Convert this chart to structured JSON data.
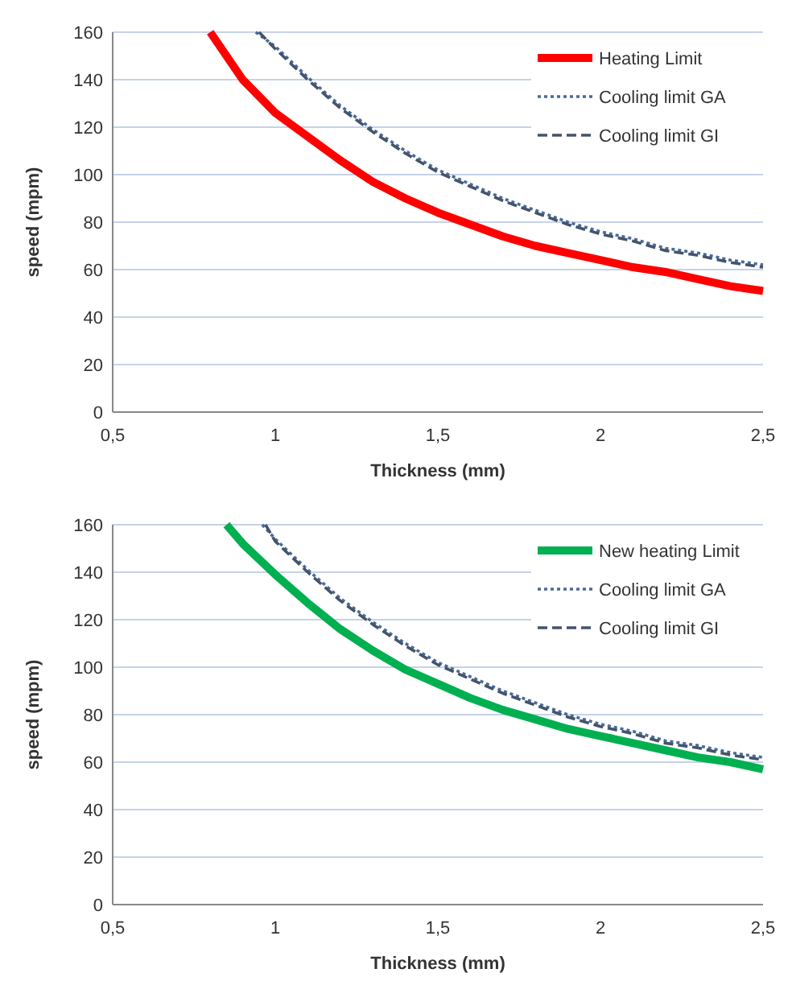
{
  "chart_data": [
    {
      "type": "line",
      "xlabel": "Thickness (mm)",
      "ylabel": "speed (mpm)",
      "xlim": [
        0.5,
        2.5
      ],
      "ylim": [
        0,
        160
      ],
      "xticks": [
        {
          "value": 0.5,
          "label": "0,5"
        },
        {
          "value": 1,
          "label": "1"
        },
        {
          "value": 1.5,
          "label": "1,5"
        },
        {
          "value": 2,
          "label": "2"
        },
        {
          "value": 2.5,
          "label": "2,5"
        }
      ],
      "yticks": [
        0,
        20,
        40,
        60,
        80,
        100,
        120,
        140,
        160
      ],
      "grid": "y",
      "legend": "top right",
      "marker": "none",
      "series": [
        {
          "name": "Heating Limit",
          "color": "#ff0000",
          "line_style": "solid",
          "x": [
            0.8,
            0.9,
            1.0,
            1.1,
            1.2,
            1.3,
            1.4,
            1.5,
            1.6,
            1.7,
            1.8,
            1.9,
            2.0,
            2.1,
            2.2,
            2.3,
            2.4,
            2.5
          ],
          "values": [
            160,
            140,
            126,
            116,
            106,
            97,
            90,
            84,
            79,
            74,
            70,
            67,
            64,
            61,
            59,
            56,
            53,
            51
          ]
        },
        {
          "name": "Cooling limit GA",
          "color": "#4a6a9a",
          "line_style": "dotted",
          "x": [
            0.94,
            1.0,
            1.1,
            1.2,
            1.3,
            1.4,
            1.5,
            1.6,
            1.7,
            1.8,
            1.9,
            2.0,
            2.1,
            2.2,
            2.3,
            2.4,
            2.5
          ],
          "values": [
            160,
            154,
            141,
            129,
            119,
            110,
            102,
            96,
            90,
            85,
            80,
            76,
            73,
            69,
            67,
            64,
            62
          ]
        },
        {
          "name": "Cooling limit GI",
          "color": "#44546a",
          "line_style": "dashed",
          "x": [
            0.95,
            1.0,
            1.1,
            1.2,
            1.3,
            1.4,
            1.5,
            1.6,
            1.7,
            1.8,
            1.9,
            2.0,
            2.1,
            2.2,
            2.3,
            2.4,
            2.5
          ],
          "values": [
            160,
            153,
            140,
            128,
            118,
            109,
            101,
            95,
            89,
            84,
            79,
            75,
            72,
            68,
            66,
            63,
            61
          ]
        }
      ]
    },
    {
      "type": "line",
      "xlabel": "Thickness (mm)",
      "ylabel": "speed (mpm)",
      "xlim": [
        0.5,
        2.5
      ],
      "ylim": [
        0,
        160
      ],
      "xticks": [
        {
          "value": 0.5,
          "label": "0,5"
        },
        {
          "value": 1,
          "label": "1"
        },
        {
          "value": 1.5,
          "label": "1,5"
        },
        {
          "value": 2,
          "label": "2"
        },
        {
          "value": 2.5,
          "label": "2,5"
        }
      ],
      "yticks": [
        0,
        20,
        40,
        60,
        80,
        100,
        120,
        140,
        160
      ],
      "grid": "y",
      "legend": "top right",
      "marker": "none",
      "series": [
        {
          "name": "New heating Limit",
          "color": "#00b050",
          "line_style": "solid",
          "x": [
            0.85,
            0.9,
            1.0,
            1.1,
            1.2,
            1.3,
            1.4,
            1.5,
            1.6,
            1.7,
            1.8,
            1.9,
            2.0,
            2.1,
            2.2,
            2.3,
            2.4,
            2.5
          ],
          "values": [
            160,
            152,
            139,
            127,
            116,
            107,
            99,
            93,
            87,
            82,
            78,
            74,
            71,
            68,
            65,
            62,
            60,
            57
          ]
        },
        {
          "name": "Cooling limit GA",
          "color": "#4a6a9a",
          "line_style": "dotted",
          "x": [
            0.96,
            1.0,
            1.1,
            1.2,
            1.3,
            1.4,
            1.5,
            1.6,
            1.7,
            1.8,
            1.9,
            2.0,
            2.1,
            2.2,
            2.3,
            2.4,
            2.5
          ],
          "values": [
            160,
            154,
            141,
            129,
            119,
            110,
            102,
            96,
            90,
            85,
            80,
            76,
            73,
            69,
            67,
            64,
            62
          ]
        },
        {
          "name": "Cooling limit GI",
          "color": "#44546a",
          "line_style": "dashed",
          "x": [
            0.97,
            1.0,
            1.1,
            1.2,
            1.3,
            1.4,
            1.5,
            1.6,
            1.7,
            1.8,
            1.9,
            2.0,
            2.1,
            2.2,
            2.3,
            2.4,
            2.5
          ],
          "values": [
            160,
            153,
            140,
            128,
            118,
            109,
            101,
            95,
            89,
            84,
            79,
            75,
            72,
            68,
            66,
            63,
            61
          ]
        }
      ]
    }
  ]
}
